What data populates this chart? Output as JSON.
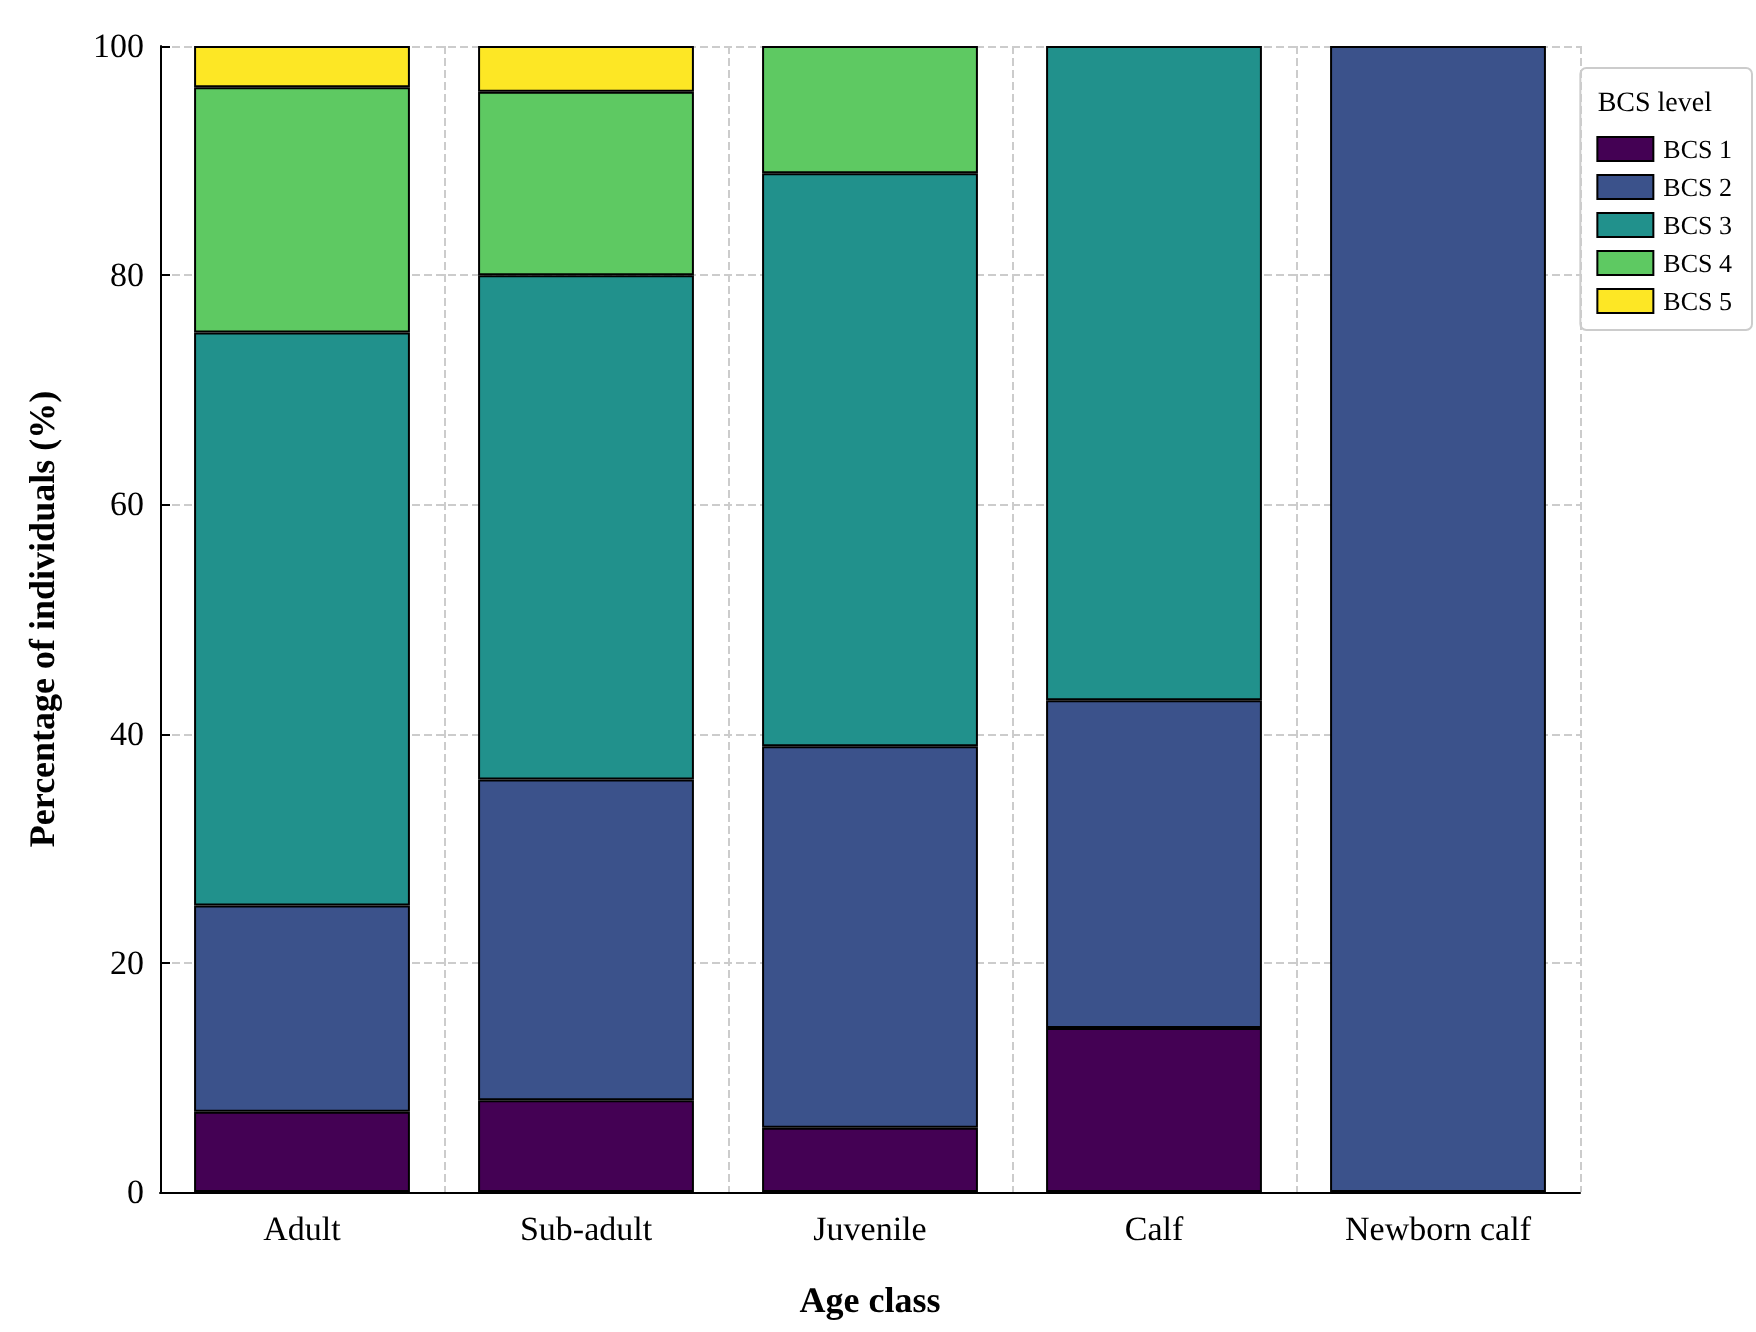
{
  "chart_data": {
    "type": "bar",
    "stacked": true,
    "xlabel": "Age class",
    "ylabel": "Percentage of individuals (%)",
    "legend_title": "BCS level",
    "legend": "top right",
    "grid": true,
    "categories": [
      "Adult",
      "Sub-adult",
      "Juvenile",
      "Calf",
      "Newborn calf"
    ],
    "ylim": [
      0,
      100
    ],
    "yticks": [
      0,
      20,
      40,
      60,
      80,
      100
    ],
    "series": [
      {
        "name": "BCS 1",
        "color": "#440154",
        "values": [
          7,
          8,
          5.6,
          14.3,
          0
        ]
      },
      {
        "name": "BCS 2",
        "color": "#3b528b",
        "values": [
          18,
          28,
          33.3,
          28.6,
          100
        ]
      },
      {
        "name": "BCS 3",
        "color": "#21918c",
        "values": [
          50,
          44,
          50,
          57.1,
          0
        ]
      },
      {
        "name": "BCS 4",
        "color": "#5ec962",
        "values": [
          21.4,
          16,
          11.1,
          0,
          0
        ]
      },
      {
        "name": "BCS 5",
        "color": "#fde725",
        "values": [
          3.6,
          4,
          0,
          0,
          0
        ]
      }
    ]
  }
}
